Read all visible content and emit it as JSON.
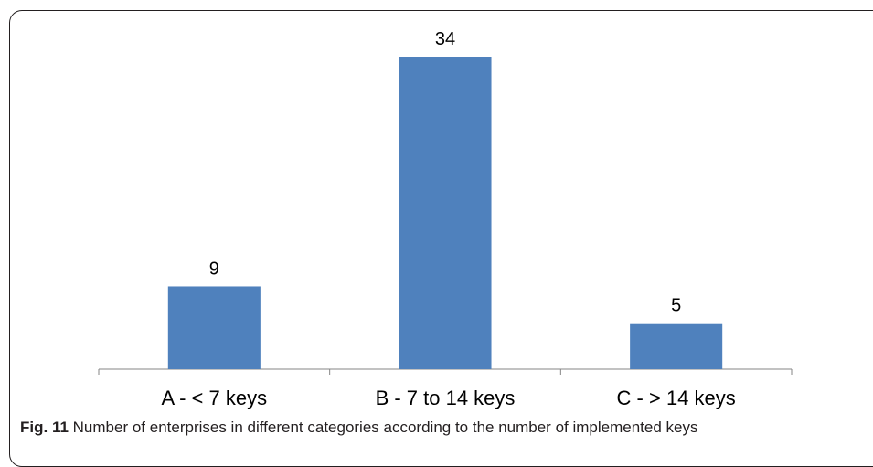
{
  "chart_data": {
    "type": "bar",
    "categories": [
      "A - < 7 keys",
      "B - 7 to 14 keys",
      "C - > 14 keys"
    ],
    "values": [
      9,
      34,
      5
    ],
    "data_labels": [
      "9",
      "34",
      "5"
    ],
    "bar_color": "#4f81bd",
    "ylim": [
      0,
      34
    ],
    "grid": false,
    "legend": "none"
  },
  "caption": {
    "figure_number": "Fig. 11",
    "text": "Number of enterprises in different categories according to the number of implemented keys"
  }
}
